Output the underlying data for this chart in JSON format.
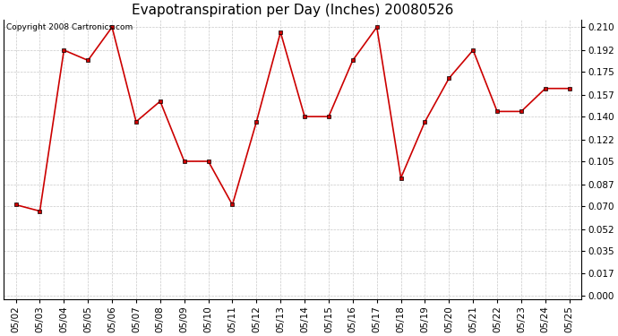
{
  "title": "Evapotranspiration per Day (Inches) 20080526",
  "copyright_text": "Copyright 2008 Cartronics.com",
  "dates": [
    "05/02",
    "05/03",
    "05/04",
    "05/05",
    "05/06",
    "05/07",
    "05/08",
    "05/09",
    "05/10",
    "05/11",
    "05/12",
    "05/13",
    "05/14",
    "05/15",
    "05/16",
    "05/17",
    "05/18",
    "05/19",
    "05/20",
    "05/21",
    "05/22",
    "05/23",
    "05/24",
    "05/25"
  ],
  "values": [
    0.071,
    0.066,
    0.192,
    0.184,
    0.21,
    0.136,
    0.152,
    0.105,
    0.105,
    0.071,
    0.136,
    0.206,
    0.14,
    0.14,
    0.184,
    0.21,
    0.092,
    0.136,
    0.17,
    0.192,
    0.144,
    0.144,
    0.162,
    0.162
  ],
  "line_color": "#cc0000",
  "marker": "s",
  "marker_size": 3,
  "background_color": "#ffffff",
  "plot_bg_color": "#ffffff",
  "grid_color": "#bbbbbb",
  "yticks": [
    0.0,
    0.017,
    0.035,
    0.052,
    0.07,
    0.087,
    0.105,
    0.122,
    0.14,
    0.157,
    0.175,
    0.192,
    0.21
  ],
  "ylim_min": -0.003,
  "ylim_max": 0.216,
  "title_fontsize": 11,
  "copyright_fontsize": 6.5,
  "tick_fontsize": 7.5,
  "figwidth": 6.9,
  "figheight": 3.75,
  "dpi": 100
}
